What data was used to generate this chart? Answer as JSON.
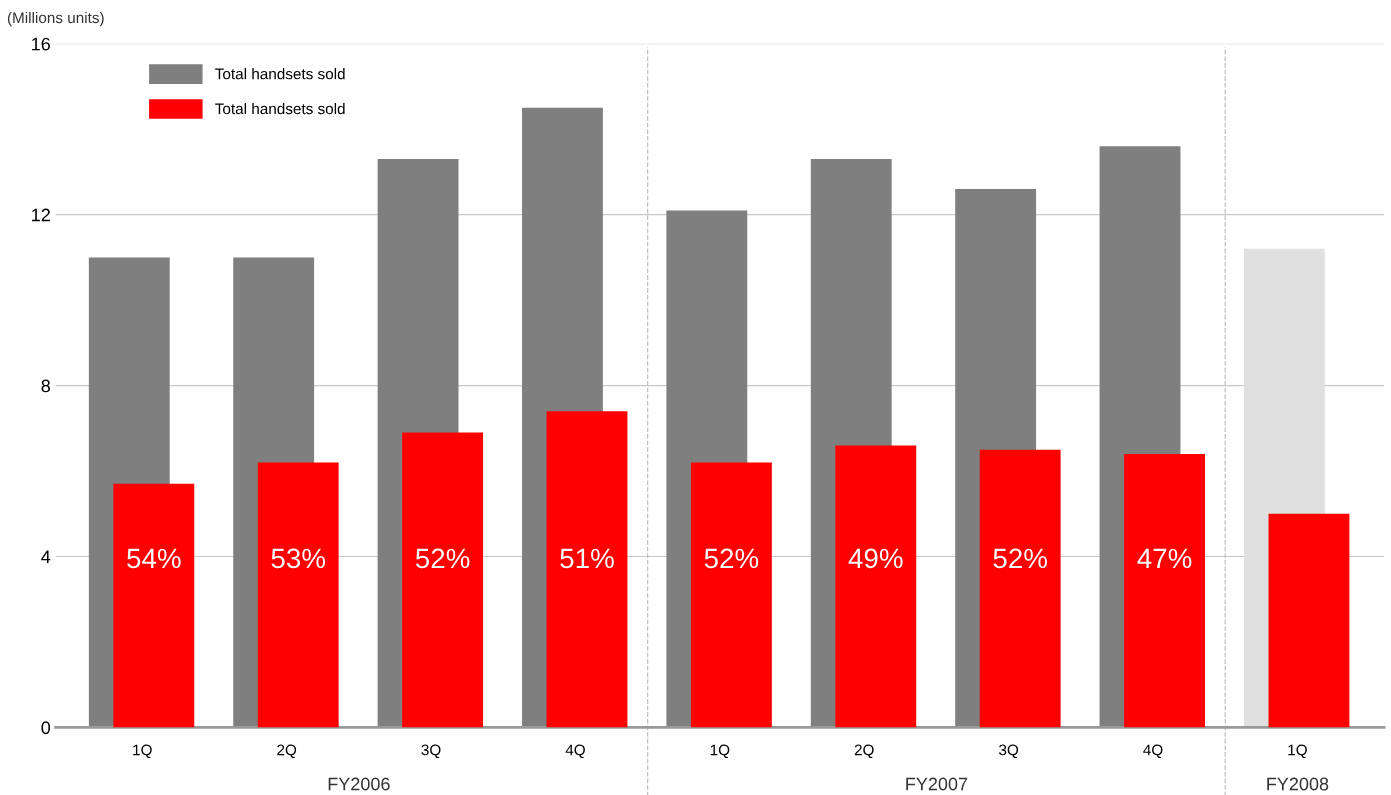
{
  "chart_data": {
    "type": "bar",
    "ylabel": "(Millions units)",
    "categories": [
      "1Q",
      "2Q",
      "3Q",
      "4Q",
      "1Q",
      "2Q",
      "3Q",
      "4Q",
      "1Q"
    ],
    "series": [
      {
        "name": "Total handsets sold",
        "color": "#7f7f7f",
        "colors": [
          "#7f7f7f",
          "#7f7f7f",
          "#7f7f7f",
          "#7f7f7f",
          "#7f7f7f",
          "#7f7f7f",
          "#7f7f7f",
          "#7f7f7f",
          "#e0e0e0"
        ],
        "values": [
          11.0,
          11.0,
          13.3,
          14.5,
          12.1,
          13.3,
          12.6,
          13.6,
          11.2
        ]
      },
      {
        "name": "Total handsets sold",
        "color": "#ff0000",
        "values": [
          5.7,
          6.2,
          6.9,
          7.4,
          6.2,
          6.6,
          6.5,
          6.4,
          5.0
        ]
      }
    ],
    "ylim": [
      0,
      16
    ],
    "yticks": [
      0,
      4,
      8,
      12,
      16
    ],
    "grid": "y",
    "legend": "top left",
    "annotations": [
      "FY2006",
      "FY2007",
      "FY2008",
      "54%",
      "53%",
      "52%",
      "51%",
      "52%",
      "49%",
      "52%",
      "47%"
    ]
  }
}
